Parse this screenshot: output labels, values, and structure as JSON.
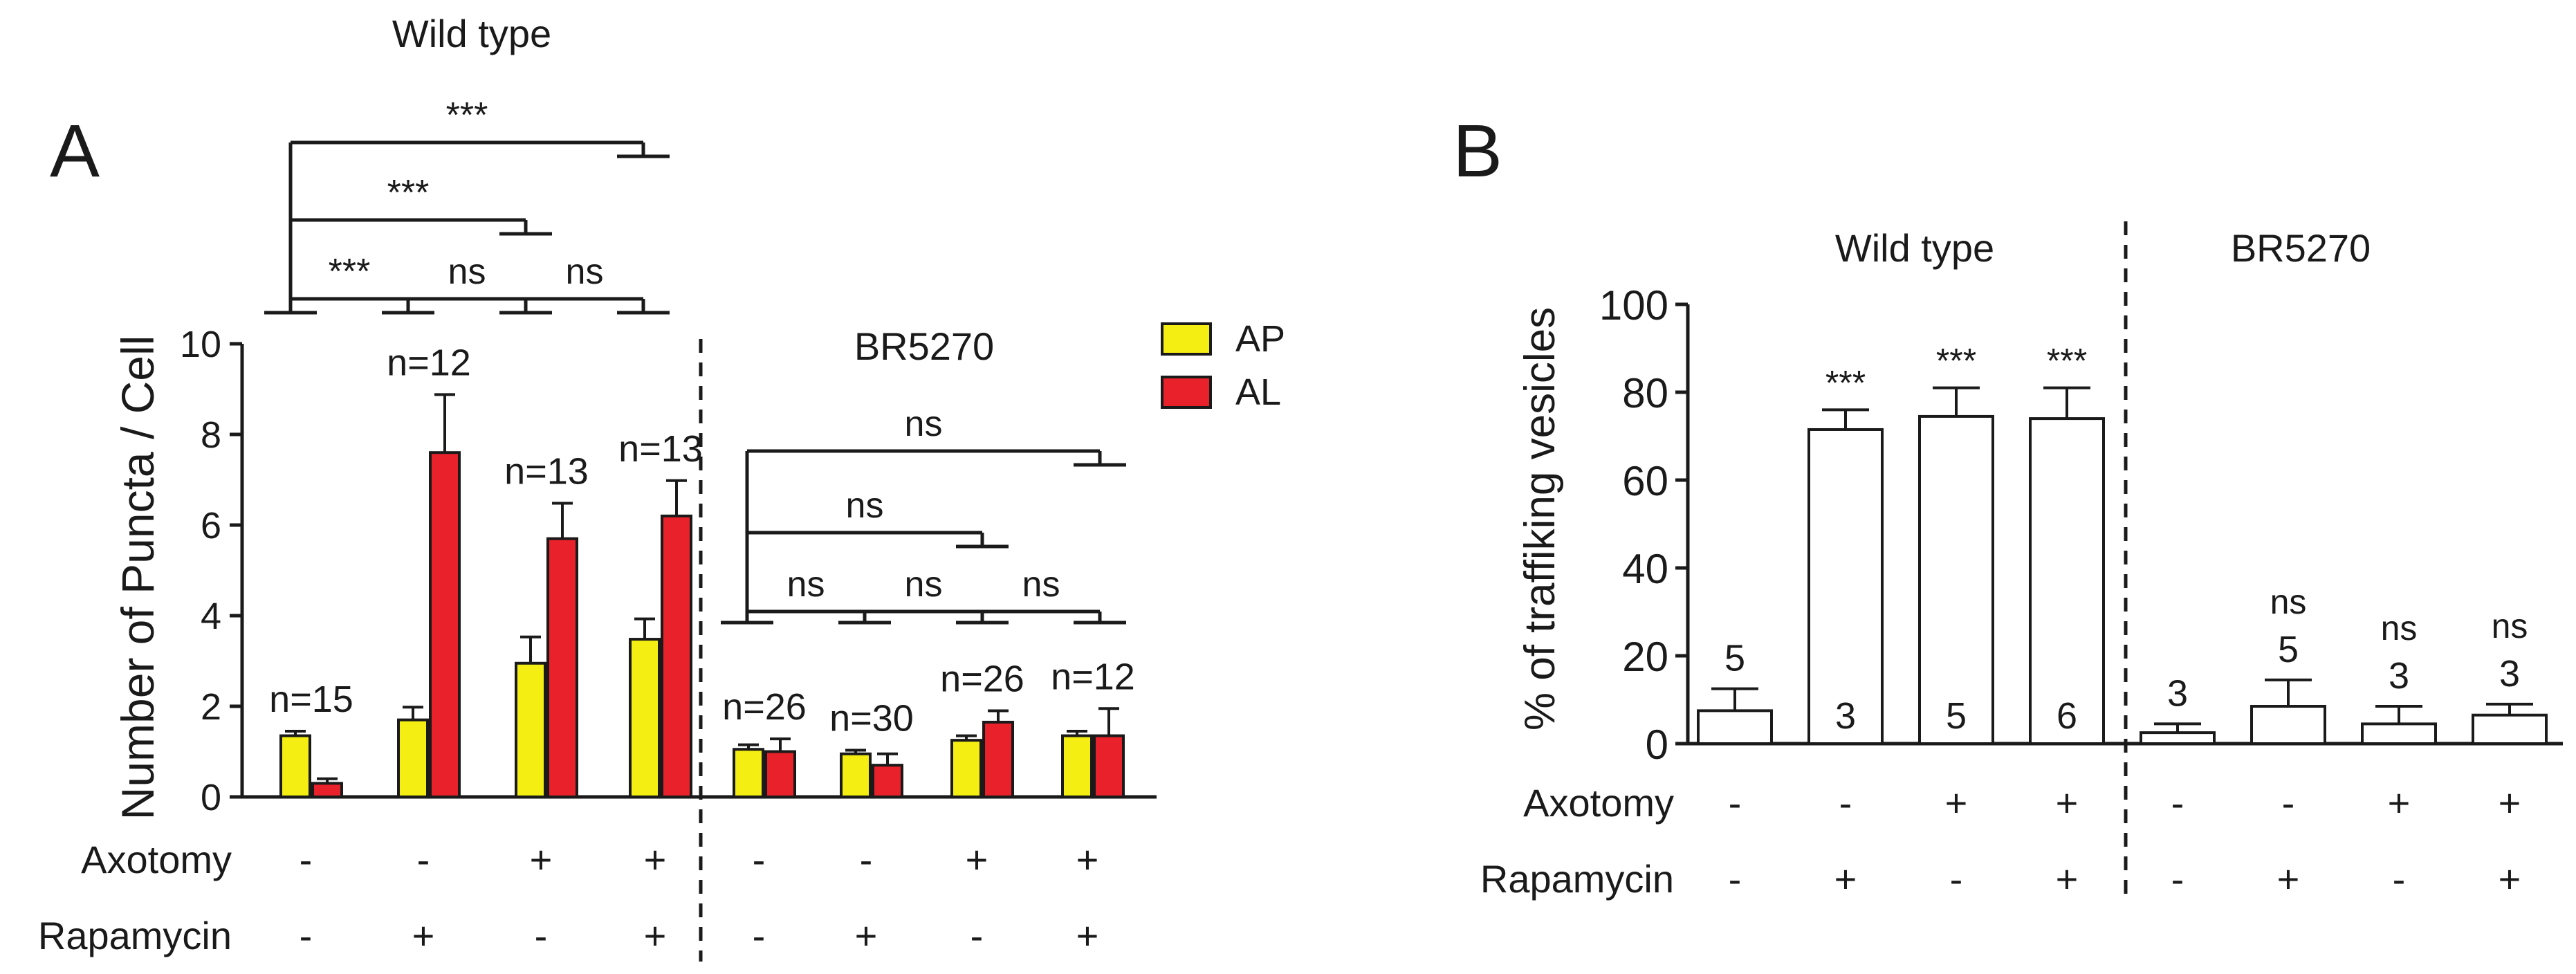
{
  "chart_data": [
    {
      "panel": "A",
      "type": "bar",
      "ylabel": "Number of Puncta / Cell",
      "ylim": [
        0,
        10
      ],
      "yticks": [
        0,
        2,
        4,
        6,
        8,
        10
      ],
      "legend": {
        "position": "top-right",
        "entries": [
          "AP",
          "AL"
        ]
      },
      "colors": {
        "AP": "#f4ee12",
        "AL": "#e8212a"
      },
      "groups": [
        {
          "strain": "Wild type",
          "axotomy": "-",
          "rapamycin": "-",
          "n_label": "n=15",
          "AP": 1.35,
          "AP_err": 0.1,
          "AL": 0.3,
          "AL_err": 0.1
        },
        {
          "strain": "Wild type",
          "axotomy": "-",
          "rapamycin": "+",
          "n_label": "n=12",
          "AP": 1.7,
          "AP_err": 0.28,
          "AL": 7.6,
          "AL_err": 1.28
        },
        {
          "strain": "Wild type",
          "axotomy": "+",
          "rapamycin": "-",
          "n_label": "n=13",
          "AP": 2.95,
          "AP_err": 0.58,
          "AL": 5.7,
          "AL_err": 0.78
        },
        {
          "strain": "Wild type",
          "axotomy": "+",
          "rapamycin": "+",
          "n_label": "n=13",
          "AP": 3.48,
          "AP_err": 0.45,
          "AL": 6.2,
          "AL_err": 0.78
        },
        {
          "strain": "BR5270",
          "axotomy": "-",
          "rapamycin": "-",
          "n_label": "n=26",
          "AP": 1.05,
          "AP_err": 0.1,
          "AL": 1.0,
          "AL_err": 0.28
        },
        {
          "strain": "BR5270",
          "axotomy": "-",
          "rapamycin": "+",
          "n_label": "n=30",
          "AP": 0.95,
          "AP_err": 0.08,
          "AL": 0.7,
          "AL_err": 0.25
        },
        {
          "strain": "BR5270",
          "axotomy": "+",
          "rapamycin": "-",
          "n_label": "n=26",
          "AP": 1.25,
          "AP_err": 0.1,
          "AL": 1.65,
          "AL_err": 0.25
        },
        {
          "strain": "BR5270",
          "axotomy": "+",
          "rapamycin": "+",
          "n_label": "n=12",
          "AP": 1.35,
          "AP_err": 0.1,
          "AL": 1.35,
          "AL_err": 0.6
        }
      ],
      "group_titles": [
        "Wild type",
        "BR5270"
      ],
      "row_labels": {
        "axotomy": "Axotomy",
        "rapamycin": "Rapamycin"
      },
      "significance": {
        "Wild type": [
          {
            "target": 3,
            "level": 3,
            "label": "***"
          },
          {
            "target": 2,
            "level": 2,
            "label": "***"
          },
          {
            "target": 1,
            "level": 1,
            "label": "***"
          },
          {
            "target": 2,
            "level": 1,
            "label": "ns"
          },
          {
            "target": 3,
            "level": 1,
            "label": "ns"
          }
        ],
        "BR5270": [
          {
            "target": 3,
            "level": 3,
            "label": "ns"
          },
          {
            "target": 2,
            "level": 2,
            "label": "ns"
          },
          {
            "target": 1,
            "level": 1,
            "label": "ns"
          },
          {
            "target": 2,
            "level": 1,
            "label": "ns"
          },
          {
            "target": 3,
            "level": 1,
            "label": "ns"
          }
        ]
      }
    },
    {
      "panel": "B",
      "type": "bar",
      "ylabel": "% of traffiking vesicles",
      "ylim": [
        0,
        100
      ],
      "yticks": [
        0,
        20,
        40,
        60,
        80,
        100
      ],
      "group_titles": [
        "Wild type",
        "BR5270"
      ],
      "row_labels": {
        "axotomy": "Axotomy",
        "rapamycin": "Rapamycin"
      },
      "bars": [
        {
          "strain": "Wild type",
          "axotomy": "-",
          "rapamycin": "-",
          "value": 7.5,
          "err": 5.0,
          "n": "5",
          "sig": ""
        },
        {
          "strain": "Wild type",
          "axotomy": "-",
          "rapamycin": "+",
          "value": 71.5,
          "err": 4.5,
          "n": "3",
          "sig": "***"
        },
        {
          "strain": "Wild type",
          "axotomy": "+",
          "rapamycin": "-",
          "value": 74.5,
          "err": 6.5,
          "n": "5",
          "sig": "***"
        },
        {
          "strain": "Wild type",
          "axotomy": "+",
          "rapamycin": "+",
          "value": 74.0,
          "err": 7.0,
          "n": "6",
          "sig": "***"
        },
        {
          "strain": "BR5270",
          "axotomy": "-",
          "rapamycin": "-",
          "value": 2.5,
          "err": 2.0,
          "n": "3",
          "sig": ""
        },
        {
          "strain": "BR5270",
          "axotomy": "-",
          "rapamycin": "+",
          "value": 8.5,
          "err": 6.0,
          "n": "5",
          "sig": "ns"
        },
        {
          "strain": "BR5270",
          "axotomy": "+",
          "rapamycin": "-",
          "value": 4.5,
          "err": 4.0,
          "n": "3",
          "sig": "ns"
        },
        {
          "strain": "BR5270",
          "axotomy": "+",
          "rapamycin": "+",
          "value": 6.5,
          "err": 2.5,
          "n": "3",
          "sig": "ns"
        }
      ]
    }
  ]
}
